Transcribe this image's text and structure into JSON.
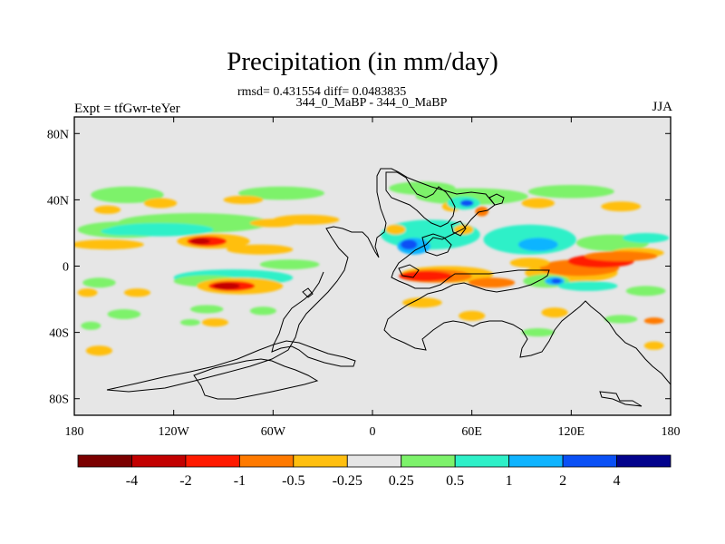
{
  "chart_data": {
    "type": "heatmap",
    "title": "Precipitation (in mm/day)",
    "subtitle": "344_0_MaBP - 344_0_MaBP",
    "stats_line": "rmsd= 0.431554 diff= 0.0483835",
    "left_label": "Expt = tfGwr-teYer",
    "right_label": "JJA",
    "xlabel": "",
    "ylabel": "",
    "xlim": [
      -180,
      180
    ],
    "ylim": [
      -90,
      90
    ],
    "x_ticks": [
      {
        "value": -180,
        "label": "180"
      },
      {
        "value": -120,
        "label": "120W"
      },
      {
        "value": -60,
        "label": "60W"
      },
      {
        "value": 0,
        "label": "0"
      },
      {
        "value": 60,
        "label": "60E"
      },
      {
        "value": 120,
        "label": "120E"
      },
      {
        "value": 180,
        "label": "180"
      }
    ],
    "y_ticks": [
      {
        "value": 80,
        "label": "80N"
      },
      {
        "value": 40,
        "label": "40N"
      },
      {
        "value": 0,
        "label": "0"
      },
      {
        "value": -40,
        "label": "40S"
      },
      {
        "value": -80,
        "label": "80S"
      }
    ],
    "colorbar": {
      "colors": [
        "#7b0000",
        "#c20000",
        "#ff1a00",
        "#ff7a00",
        "#ffbf10",
        "#e6e6e6",
        "#7df26b",
        "#2ef0c8",
        "#10b4ff",
        "#0a50f5",
        "#03038c"
      ],
      "tick_labels": [
        "-4",
        "-2",
        "-1",
        "-0.5",
        "-0.25",
        "0.25",
        "0.5",
        "1",
        "2",
        "4"
      ]
    },
    "background_color": "#e6e6e6",
    "anomaly_regions": [
      {
        "lon": -148,
        "lat": 43,
        "dlon": 22,
        "dlat": 5,
        "level": 6
      },
      {
        "lon": -55,
        "lat": 44,
        "dlon": 26,
        "dlat": 4,
        "level": 6
      },
      {
        "lon": -40,
        "lat": 28,
        "dlon": 20,
        "dlat": 3,
        "level": 4
      },
      {
        "lon": -128,
        "lat": 38,
        "dlon": 10,
        "dlat": 3,
        "level": 4
      },
      {
        "lon": -160,
        "lat": 34,
        "dlon": 8,
        "dlat": 2.5,
        "level": 4
      },
      {
        "lon": -78,
        "lat": 40,
        "dlon": 12,
        "dlat": 2.5,
        "level": 4
      },
      {
        "lon": -150,
        "lat": 22,
        "dlon": 28,
        "dlat": 5,
        "level": 6
      },
      {
        "lon": -108,
        "lat": 26,
        "dlon": 46,
        "dlat": 6,
        "level": 6
      },
      {
        "lon": -128,
        "lat": 22,
        "dlon": 32,
        "dlat": 4,
        "level": 7
      },
      {
        "lon": -150,
        "lat": 21,
        "dlon": 14,
        "dlat": 2.5,
        "level": 7
      },
      {
        "lon": -96,
        "lat": 15,
        "dlon": 22,
        "dlat": 4.5,
        "level": 4
      },
      {
        "lon": -100,
        "lat": 15,
        "dlon": 12,
        "dlat": 3,
        "level": 2
      },
      {
        "lon": -104,
        "lat": 15,
        "dlon": 6,
        "dlat": 1.8,
        "level": 1
      },
      {
        "lon": -160,
        "lat": 13,
        "dlon": 22,
        "dlat": 3,
        "level": 4
      },
      {
        "lon": -68,
        "lat": 10,
        "dlon": 20,
        "dlat": 3,
        "level": 4
      },
      {
        "lon": -60,
        "lat": 26,
        "dlon": 14,
        "dlat": 2.5,
        "level": 4
      },
      {
        "lon": -50,
        "lat": 1,
        "dlon": 18,
        "dlat": 3,
        "level": 6
      },
      {
        "lon": -84,
        "lat": -7,
        "dlon": 36,
        "dlat": 5,
        "level": 7
      },
      {
        "lon": -100,
        "lat": -9,
        "dlon": 20,
        "dlat": 3.5,
        "level": 6
      },
      {
        "lon": -80,
        "lat": -12,
        "dlon": 26,
        "dlat": 5,
        "level": 4
      },
      {
        "lon": -85,
        "lat": -12,
        "dlon": 14,
        "dlat": 3,
        "level": 2
      },
      {
        "lon": -88,
        "lat": -12,
        "dlon": 8,
        "dlat": 2,
        "level": 1
      },
      {
        "lon": -165,
        "lat": -10,
        "dlon": 10,
        "dlat": 3,
        "level": 6
      },
      {
        "lon": -172,
        "lat": -16,
        "dlon": 6,
        "dlat": 2.5,
        "level": 4
      },
      {
        "lon": -142,
        "lat": -16,
        "dlon": 8,
        "dlat": 2.5,
        "level": 4
      },
      {
        "lon": -150,
        "lat": -29,
        "dlon": 10,
        "dlat": 3,
        "level": 6
      },
      {
        "lon": -100,
        "lat": -26,
        "dlon": 10,
        "dlat": 2.5,
        "level": 6
      },
      {
        "lon": -66,
        "lat": -27,
        "dlon": 8,
        "dlat": 2.5,
        "level": 6
      },
      {
        "lon": -170,
        "lat": -36,
        "dlon": 6,
        "dlat": 2.5,
        "level": 6
      },
      {
        "lon": -165,
        "lat": -51,
        "dlon": 8,
        "dlat": 3,
        "level": 4
      },
      {
        "lon": -95,
        "lat": -34,
        "dlon": 8,
        "dlat": 2.5,
        "level": 4
      },
      {
        "lon": -110,
        "lat": -34,
        "dlon": 6,
        "dlat": 2,
        "level": 6
      },
      {
        "lon": 30,
        "lat": 47,
        "dlon": 20,
        "dlat": 4,
        "level": 6
      },
      {
        "lon": 60,
        "lat": 42,
        "dlon": 34,
        "dlat": 5,
        "level": 6
      },
      {
        "lon": 48,
        "lat": 36,
        "dlon": 6,
        "dlat": 3,
        "level": 4
      },
      {
        "lon": 55,
        "lat": 38,
        "dlon": 10,
        "dlat": 4,
        "level": 7
      },
      {
        "lon": 57,
        "lat": 38,
        "dlon": 4,
        "dlat": 2,
        "level": 9
      },
      {
        "lon": 66,
        "lat": 33,
        "dlon": 4,
        "dlat": 3,
        "level": 3
      },
      {
        "lon": 120,
        "lat": 45,
        "dlon": 26,
        "dlat": 4,
        "level": 6
      },
      {
        "lon": 150,
        "lat": 36,
        "dlon": 12,
        "dlat": 3,
        "level": 4
      },
      {
        "lon": 100,
        "lat": 38,
        "dlon": 10,
        "dlat": 3,
        "level": 4
      },
      {
        "lon": 35,
        "lat": 19,
        "dlon": 30,
        "dlat": 9,
        "level": 7
      },
      {
        "lon": 25,
        "lat": 12,
        "dlon": 10,
        "dlat": 5,
        "level": 8
      },
      {
        "lon": 22,
        "lat": 13,
        "dlon": 5,
        "dlat": 3,
        "level": 9
      },
      {
        "lon": 55,
        "lat": 22,
        "dlon": 6,
        "dlat": 3,
        "level": 4
      },
      {
        "lon": 14,
        "lat": 22,
        "dlon": 6,
        "dlat": 3,
        "level": 4
      },
      {
        "lon": 95,
        "lat": 16,
        "dlon": 28,
        "dlat": 9,
        "level": 7
      },
      {
        "lon": 100,
        "lat": 13,
        "dlon": 12,
        "dlat": 4,
        "level": 8
      },
      {
        "lon": 145,
        "lat": 14,
        "dlon": 22,
        "dlat": 5,
        "level": 6
      },
      {
        "lon": 165,
        "lat": 17,
        "dlon": 14,
        "dlat": 3,
        "level": 7
      },
      {
        "lon": 160,
        "lat": 8,
        "dlon": 16,
        "dlat": 3,
        "level": 4
      },
      {
        "lon": 45,
        "lat": -5,
        "dlon": 28,
        "dlat": 5,
        "level": 4
      },
      {
        "lon": 38,
        "lat": -6,
        "dlon": 22,
        "dlat": 4,
        "level": 3
      },
      {
        "lon": 32,
        "lat": -6,
        "dlon": 16,
        "dlat": 3,
        "level": 2
      },
      {
        "lon": 72,
        "lat": -10,
        "dlon": 14,
        "dlat": 3,
        "level": 3
      },
      {
        "lon": 120,
        "lat": -4,
        "dlon": 28,
        "dlat": 6,
        "level": 4
      },
      {
        "lon": 125,
        "lat": -1,
        "dlon": 24,
        "dlat": 5,
        "level": 3
      },
      {
        "lon": 138,
        "lat": 3,
        "dlon": 20,
        "dlat": 4,
        "level": 2
      },
      {
        "lon": 150,
        "lat": 6,
        "dlon": 22,
        "dlat": 3,
        "level": 3
      },
      {
        "lon": 95,
        "lat": 2,
        "dlon": 12,
        "dlat": 3,
        "level": 4
      },
      {
        "lon": 105,
        "lat": -9,
        "dlon": 14,
        "dlat": 4,
        "level": 6
      },
      {
        "lon": 110,
        "lat": -9,
        "dlon": 6,
        "dlat": 2.5,
        "level": 8
      },
      {
        "lon": 111,
        "lat": -9,
        "dlon": 3,
        "dlat": 1.5,
        "level": 9
      },
      {
        "lon": 130,
        "lat": -12,
        "dlon": 18,
        "dlat": 3,
        "level": 7
      },
      {
        "lon": 165,
        "lat": -15,
        "dlon": 12,
        "dlat": 3,
        "level": 6
      },
      {
        "lon": 30,
        "lat": -22,
        "dlon": 12,
        "dlat": 3,
        "level": 4
      },
      {
        "lon": 60,
        "lat": -30,
        "dlon": 8,
        "dlat": 3,
        "level": 4
      },
      {
        "lon": 110,
        "lat": -28,
        "dlon": 8,
        "dlat": 3,
        "level": 4
      },
      {
        "lon": 150,
        "lat": -32,
        "dlon": 10,
        "dlat": 2.5,
        "level": 6
      },
      {
        "lon": 170,
        "lat": -33,
        "dlon": 6,
        "dlat": 2,
        "level": 3
      },
      {
        "lon": 170,
        "lat": -48,
        "dlon": 6,
        "dlat": 2.5,
        "level": 4
      },
      {
        "lon": 100,
        "lat": -40,
        "dlon": 10,
        "dlat": 2.5,
        "level": 6
      }
    ]
  }
}
